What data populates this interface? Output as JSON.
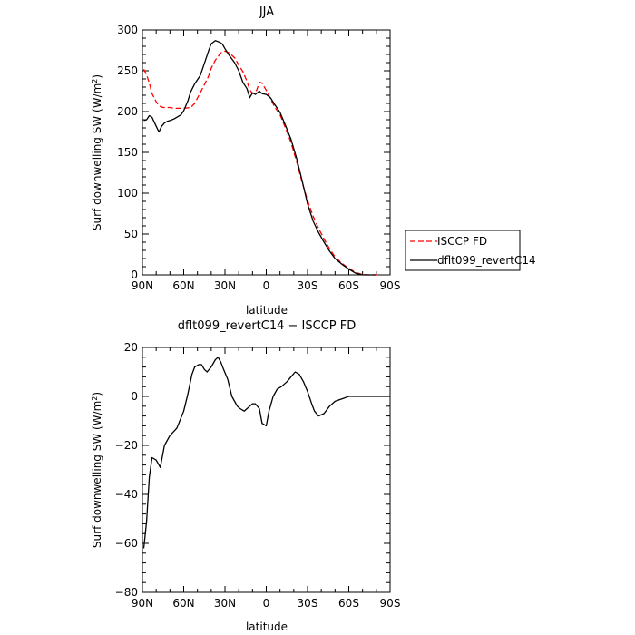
{
  "chart_data": [
    {
      "type": "line",
      "title": "JJA",
      "xlabel": "latitude",
      "ylabel": "Surf downwelling SW (W/m²)",
      "ylabel_main": "Surf downwelling SW (W/m",
      "ylabel_sup": "2",
      "ylabel_end": ")",
      "xlim": [
        90,
        -90
      ],
      "ylim": [
        0,
        300
      ],
      "xtick_values": [
        90,
        60,
        30,
        0,
        -30,
        -60,
        -90
      ],
      "xtick_labels": [
        "90N",
        "60N",
        "30N",
        "0",
        "30S",
        "60S",
        "90S"
      ],
      "ytick_values": [
        0,
        50,
        100,
        150,
        200,
        250,
        300
      ],
      "ytick_labels": [
        "0",
        "50",
        "100",
        "150",
        "200",
        "250",
        "300"
      ],
      "grid": false,
      "legend_placement": "outside-right",
      "series": [
        {
          "name": "ISCCP FD",
          "color": "#ff0000",
          "dash": "6,3",
          "x": [
            89,
            87,
            85,
            83,
            80,
            78,
            75,
            72,
            70,
            67,
            65,
            60,
            55,
            52,
            48,
            45,
            42,
            40,
            37,
            33,
            30,
            27,
            23,
            20,
            17,
            14,
            12,
            10,
            7,
            5,
            3,
            0,
            -3,
            -6,
            -10,
            -14,
            -18,
            -22,
            -26,
            -30,
            -34,
            -38,
            -42,
            -46,
            -50,
            -55,
            -60,
            -65,
            -70,
            -75,
            -78,
            -80,
            -82
          ],
          "y": [
            252,
            245,
            235,
            222,
            212,
            207,
            205,
            205,
            205,
            204,
            204,
            204,
            205,
            210,
            223,
            233,
            243,
            253,
            263,
            272,
            274,
            272,
            266,
            257,
            249,
            237,
            227,
            222,
            226,
            236,
            235,
            226,
            216,
            206,
            196,
            180,
            162,
            139,
            114,
            91,
            72,
            57,
            44,
            32,
            22,
            14,
            8,
            3,
            0.5,
            0,
            0,
            0,
            0
          ]
        },
        {
          "name": "dflt099_revertC14",
          "color": "#000000",
          "dash": "",
          "x": [
            89,
            87,
            85,
            83,
            80,
            78,
            76,
            74,
            72,
            70,
            67,
            65,
            62,
            60,
            57,
            55,
            52,
            48,
            45,
            42,
            40,
            37,
            34,
            32,
            30,
            27,
            23,
            20,
            17,
            14,
            12,
            10,
            8,
            5,
            3,
            0,
            -3,
            -6,
            -10,
            -14,
            -18,
            -22,
            -26,
            -30,
            -34,
            -38,
            -42,
            -46,
            -50,
            -55,
            -60,
            -65,
            -70,
            -75,
            -78,
            -80
          ],
          "y": [
            189,
            190,
            195,
            193,
            182,
            175,
            182,
            186,
            188,
            189,
            191,
            193,
            196,
            201,
            213,
            224,
            234,
            244,
            259,
            274,
            283,
            287,
            285,
            283,
            277,
            269,
            260,
            250,
            236,
            228,
            217,
            223,
            221,
            225,
            222,
            221,
            217,
            209,
            199,
            183,
            166,
            143,
            116,
            87,
            66,
            52,
            40,
            29,
            20,
            13,
            7,
            2,
            0,
            0,
            0,
            0
          ]
        }
      ]
    },
    {
      "type": "line",
      "title": "dflt099_revertC14 − ISCCP FD",
      "xlabel": "latitude",
      "ylabel": "Surf downwelling SW (W/m²)",
      "ylabel_main": "Surf downwelling SW (W/m",
      "ylabel_sup": "2",
      "ylabel_end": ")",
      "xlim": [
        90,
        -90
      ],
      "ylim": [
        -80,
        20
      ],
      "xtick_values": [
        90,
        60,
        30,
        0,
        -30,
        -60,
        -90
      ],
      "xtick_labels": [
        "90N",
        "60N",
        "30N",
        "0",
        "30S",
        "60S",
        "90S"
      ],
      "ytick_values": [
        -80,
        -60,
        -40,
        -20,
        0,
        20
      ],
      "ytick_labels": [
        "−80",
        "−60",
        "−40",
        "−20",
        "0",
        "20"
      ],
      "grid": false,
      "series": [
        {
          "color": "#000000",
          "x": [
            89,
            87,
            85,
            83,
            80,
            77,
            74,
            70,
            65,
            60,
            57,
            54,
            52,
            49,
            47,
            45,
            43,
            40,
            37,
            35,
            33,
            31,
            28,
            25,
            21,
            19,
            16,
            14,
            12,
            10,
            8,
            5,
            3,
            0,
            -2,
            -5,
            -8,
            -11,
            -15,
            -18,
            -21,
            -24,
            -27,
            -30,
            -33,
            -35,
            -38,
            -42,
            -46,
            -50,
            -55,
            -60,
            -65,
            -70,
            -75,
            -80,
            -85,
            -90
          ],
          "y": [
            -62,
            -51,
            -33,
            -25,
            -26,
            -29,
            -20,
            -16,
            -13,
            -6,
            1,
            9,
            12,
            13,
            13,
            11,
            10,
            12,
            15,
            16,
            14,
            11,
            7,
            0,
            -4,
            -5,
            -6,
            -5,
            -4,
            -3,
            -3,
            -5,
            -11,
            -12,
            -6,
            0,
            3,
            4,
            6,
            8,
            10,
            9,
            6,
            2,
            -3,
            -6,
            -8,
            -7,
            -4,
            -2,
            -1,
            0,
            0,
            0,
            0,
            0,
            0,
            0
          ]
        }
      ]
    }
  ]
}
